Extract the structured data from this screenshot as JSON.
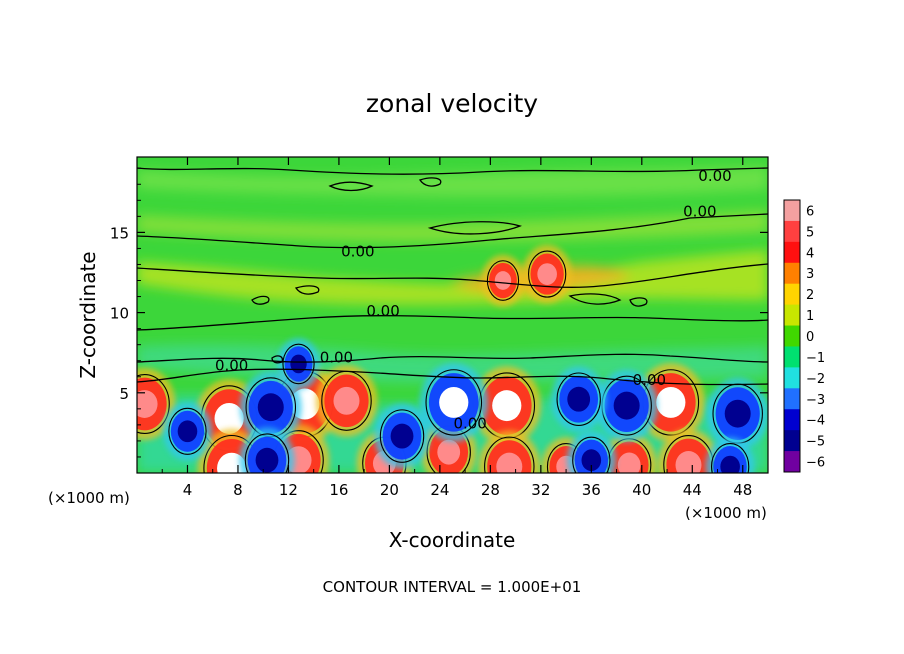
{
  "chart_data": {
    "type": "heatmap",
    "title": "zonal velocity",
    "xlabel": "X-coordinate",
    "ylabel": "Z-coordinate",
    "x_units": "(×1000 m)",
    "x_ticks": [
      4,
      8,
      12,
      16,
      20,
      24,
      28,
      32,
      36,
      40,
      44,
      48
    ],
    "y_ticks": [
      5,
      10,
      15
    ],
    "xlim": [
      0,
      50
    ],
    "ylim": [
      0,
      19.7
    ],
    "footer": "CONTOUR INTERVAL = 1.000E+01",
    "colorbar": {
      "ticks": [
        6,
        5,
        4,
        3,
        2,
        1,
        0,
        -1,
        -2,
        -3,
        -4,
        -5,
        -6
      ],
      "tick_labels": [
        "6",
        "5",
        "4",
        "3",
        "2",
        "1",
        "0",
        "−1",
        "−2",
        "−3",
        "−4",
        "−5",
        "−6"
      ],
      "range": [
        -6,
        6
      ],
      "colors": [
        "#f4a0a0",
        "#ff4040",
        "#ff1010",
        "#ff8000",
        "#ffd400",
        "#c8e600",
        "#40d800",
        "#00e070",
        "#20e0e0",
        "#2070ff",
        "#0000d0",
        "#000090",
        "#7000a0"
      ]
    },
    "contour_labels": [
      {
        "text": "0.00",
        "x": 45.8,
        "z": 18.5
      },
      {
        "text": "0.00",
        "x": 44.6,
        "z": 16.3
      },
      {
        "text": "0.00",
        "x": 17.5,
        "z": 13.8
      },
      {
        "text": "0.00",
        "x": 19.5,
        "z": 10.1
      },
      {
        "text": "0.00",
        "x": 7.5,
        "z": 6.7
      },
      {
        "text": "0.00",
        "x": 15.8,
        "z": 7.2
      },
      {
        "text": "0.00",
        "x": 40.6,
        "z": 5.8
      },
      {
        "text": "0.00",
        "x": 26.4,
        "z": 3.1
      }
    ],
    "features": [
      {
        "type": "max",
        "x": 13.3,
        "z": 4.3,
        "value": 6
      },
      {
        "type": "max",
        "x": 7.3,
        "z": 3.4,
        "value": 6
      },
      {
        "type": "max",
        "x": 29.3,
        "z": 4.2,
        "value": 6
      },
      {
        "type": "max",
        "x": 42.3,
        "z": 4.4,
        "value": 6
      },
      {
        "type": "max",
        "x": 16.6,
        "z": 4.5,
        "value": 5
      },
      {
        "type": "max",
        "x": 0.6,
        "z": 4.3,
        "value": 5
      },
      {
        "type": "max",
        "x": 7.5,
        "z": 0.3,
        "value": 6
      },
      {
        "type": "max",
        "x": 12.8,
        "z": 0.8,
        "value": 5
      },
      {
        "type": "max",
        "x": 29.5,
        "z": 0.4,
        "value": 5
      },
      {
        "type": "max",
        "x": 24.7,
        "z": 1.3,
        "value": 4
      },
      {
        "type": "max",
        "x": 43.7,
        "z": 0.5,
        "value": 5
      },
      {
        "type": "max",
        "x": 39.0,
        "z": 0.5,
        "value": 4
      },
      {
        "type": "max",
        "x": 19.6,
        "z": 0.6,
        "value": 4
      },
      {
        "type": "max",
        "x": 34.0,
        "z": 0.4,
        "value": 3
      },
      {
        "type": "max",
        "x": 32.5,
        "z": 12.4,
        "value": 3
      },
      {
        "type": "max",
        "x": 29.0,
        "z": 12.0,
        "value": 2
      },
      {
        "type": "min",
        "x": 25.1,
        "z": 4.4,
        "value": -6
      },
      {
        "type": "min",
        "x": 10.6,
        "z": 4.1,
        "value": -5
      },
      {
        "type": "min",
        "x": 38.8,
        "z": 4.2,
        "value": -5
      },
      {
        "type": "min",
        "x": 47.6,
        "z": 3.7,
        "value": -5
      },
      {
        "type": "min",
        "x": 35.0,
        "z": 4.6,
        "value": -4
      },
      {
        "type": "min",
        "x": 21.0,
        "z": 2.3,
        "value": -4
      },
      {
        "type": "min",
        "x": 10.3,
        "z": 0.8,
        "value": -4
      },
      {
        "type": "min",
        "x": 4.0,
        "z": 2.6,
        "value": -3
      },
      {
        "type": "min",
        "x": 47.0,
        "z": 0.4,
        "value": -3
      },
      {
        "type": "min",
        "x": 36.0,
        "z": 0.8,
        "value": -3
      },
      {
        "type": "min",
        "x": 12.8,
        "z": 6.8,
        "value": -2
      }
    ]
  }
}
